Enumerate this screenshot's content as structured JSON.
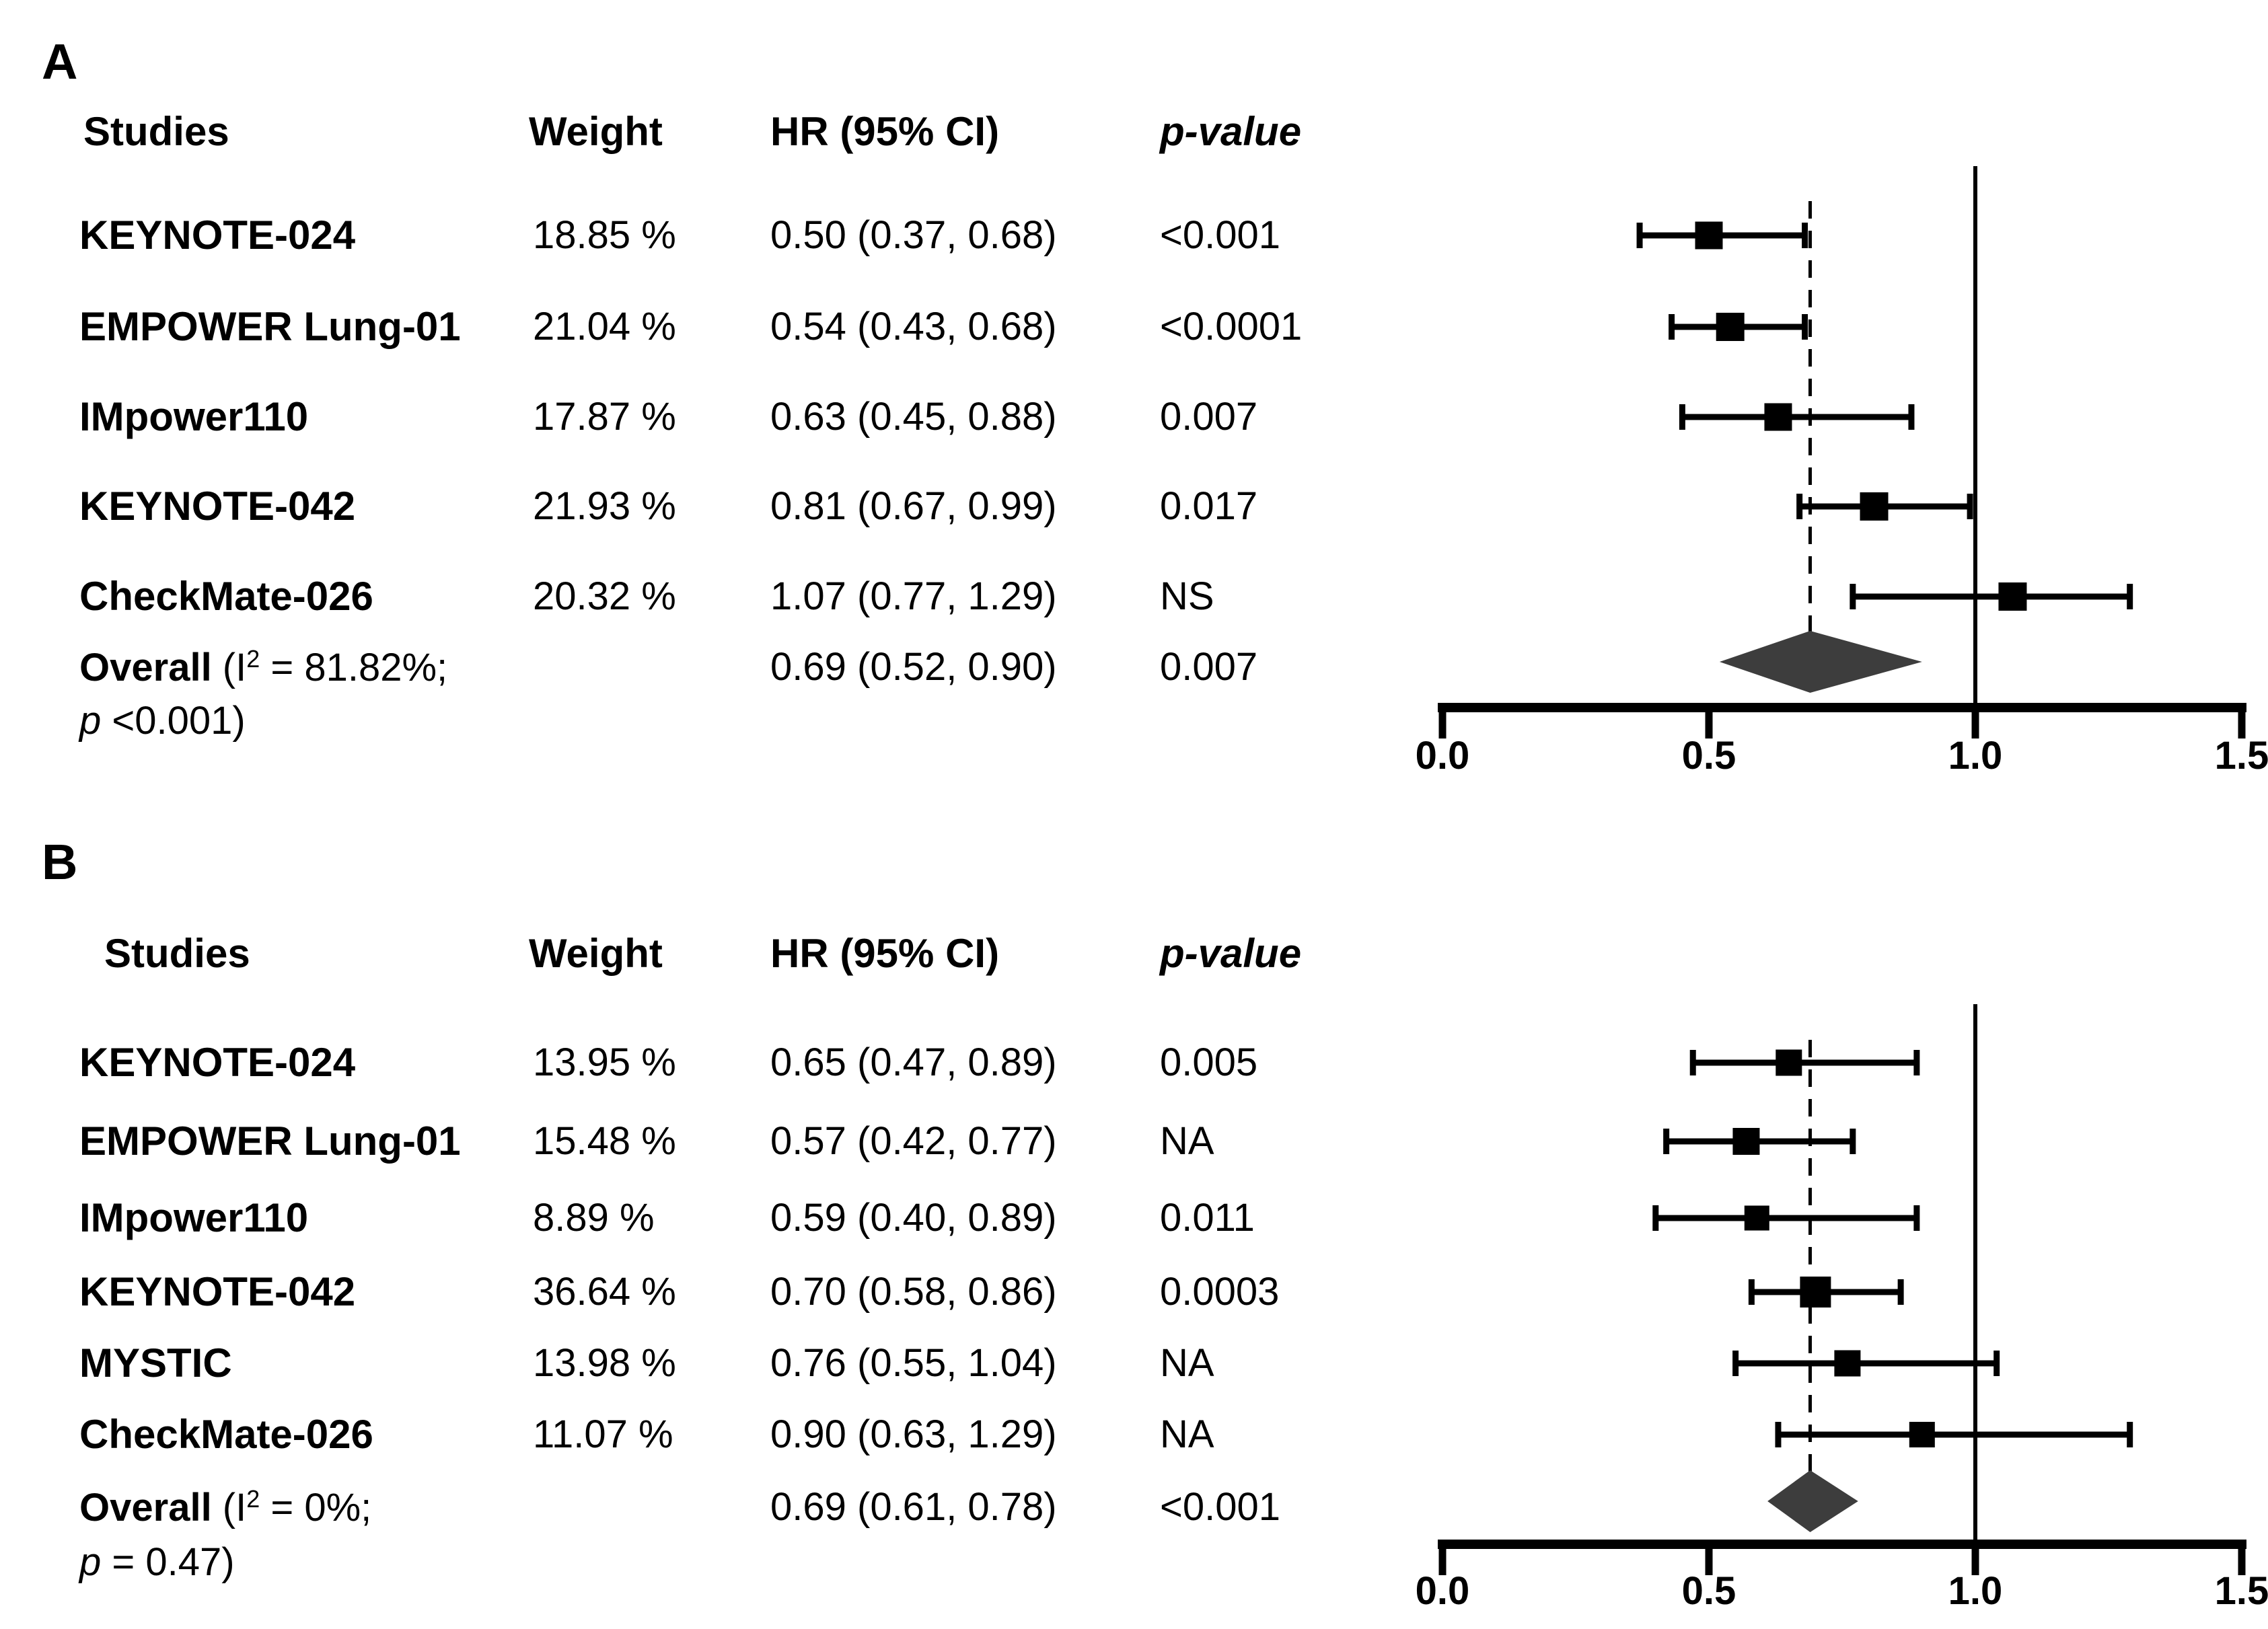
{
  "colors": {
    "background": "#ffffff",
    "text": "#000000",
    "marker": "#000000",
    "diamond": "#3d3d3d",
    "axis": "#000000"
  },
  "chart_data": [
    {
      "type": "scatter",
      "variant": "forest-plot",
      "panel_label": "A",
      "columns": {
        "studies": "Studies",
        "weight": "Weight",
        "hr": "HR (95% CI)",
        "p": "p-value"
      },
      "xlim": [
        0,
        1.5
      ],
      "xticks": [
        0,
        0.5,
        1.0,
        1.5
      ],
      "xtick_labels": [
        "0.0",
        "0.5",
        "1.0",
        "1.5"
      ],
      "reference_line_x": 1.0,
      "dashed_line_x": 0.69,
      "studies": [
        {
          "name": "KEYNOTE-024",
          "weight_pct": 18.85,
          "weight_label": "18.85 %",
          "hr": 0.5,
          "ci_low": 0.37,
          "ci_high": 0.68,
          "hr_label": "0.50 (0.37, 0.68)",
          "p_label": "<0.001"
        },
        {
          "name": "EMPOWER Lung-01",
          "weight_pct": 21.04,
          "weight_label": "21.04 %",
          "hr": 0.54,
          "ci_low": 0.43,
          "ci_high": 0.68,
          "hr_label": "0.54 (0.43, 0.68)",
          "p_label": "<0.0001"
        },
        {
          "name": "IMpower110",
          "weight_pct": 17.87,
          "weight_label": "17.87 %",
          "hr": 0.63,
          "ci_low": 0.45,
          "ci_high": 0.88,
          "hr_label": "0.63 (0.45, 0.88)",
          "p_label": "0.007"
        },
        {
          "name": "KEYNOTE-042",
          "weight_pct": 21.93,
          "weight_label": "21.93 %",
          "hr": 0.81,
          "ci_low": 0.67,
          "ci_high": 0.99,
          "hr_label": "0.81 (0.67, 0.99)",
          "p_label": "0.017"
        },
        {
          "name": "CheckMate-026",
          "weight_pct": 20.32,
          "weight_label": "20.32 %",
          "hr": 1.07,
          "ci_low": 0.77,
          "ci_high": 1.29,
          "hr_label": "1.07 (0.77, 1.29)",
          "p_label": "NS"
        }
      ],
      "overall": {
        "label_bold": "Overall",
        "label_open": " (I",
        "label_sup": "2",
        "label_close": " = 81.82%;",
        "p_line2_italic": "p",
        "p_line2_rest": " <0.001)",
        "hr": 0.69,
        "ci_low": 0.52,
        "ci_high": 0.9,
        "hr_label": "0.69 (0.52, 0.90)",
        "p_label": "0.007"
      }
    },
    {
      "type": "scatter",
      "variant": "forest-plot",
      "panel_label": "B",
      "columns": {
        "studies": "Studies",
        "weight": "Weight",
        "hr": "HR (95% CI)",
        "p": "p-value"
      },
      "xlim": [
        0,
        1.5
      ],
      "xticks": [
        0,
        0.5,
        1.0,
        1.5
      ],
      "xtick_labels": [
        "0.0",
        "0.5",
        "1.0",
        "1.5"
      ],
      "reference_line_x": 1.0,
      "dashed_line_x": 0.69,
      "studies": [
        {
          "name": "KEYNOTE-024",
          "weight_pct": 13.95,
          "weight_label": "13.95 %",
          "hr": 0.65,
          "ci_low": 0.47,
          "ci_high": 0.89,
          "hr_label": "0.65 (0.47, 0.89)",
          "p_label": "0.005"
        },
        {
          "name": "EMPOWER Lung-01",
          "weight_pct": 15.48,
          "weight_label": "15.48 %",
          "hr": 0.57,
          "ci_low": 0.42,
          "ci_high": 0.77,
          "hr_label": "0.57 (0.42, 0.77)",
          "p_label": "NA"
        },
        {
          "name": "IMpower110",
          "weight_pct": 8.89,
          "weight_label": "8.89 %",
          "hr": 0.59,
          "ci_low": 0.4,
          "ci_high": 0.89,
          "hr_label": "0.59 (0.40, 0.89)",
          "p_label": "0.011"
        },
        {
          "name": "KEYNOTE-042",
          "weight_pct": 36.64,
          "weight_label": "36.64 %",
          "hr": 0.7,
          "ci_low": 0.58,
          "ci_high": 0.86,
          "hr_label": "0.70 (0.58, 0.86)",
          "p_label": "0.0003"
        },
        {
          "name": "MYSTIC",
          "weight_pct": 13.98,
          "weight_label": "13.98 %",
          "hr": 0.76,
          "ci_low": 0.55,
          "ci_high": 1.04,
          "hr_label": "0.76 (0.55, 1.04)",
          "p_label": "NA"
        },
        {
          "name": "CheckMate-026",
          "weight_pct": 11.07,
          "weight_label": "11.07 %",
          "hr": 0.9,
          "ci_low": 0.63,
          "ci_high": 1.29,
          "hr_label": "0.90 (0.63, 1.29)",
          "p_label": "NA"
        }
      ],
      "overall": {
        "label_bold": "Overall",
        "label_open": " (I",
        "label_sup": "2",
        "label_close": " = 0%;",
        "p_line2_italic": "p",
        "p_line2_rest": " = 0.47)",
        "hr": 0.69,
        "ci_low": 0.61,
        "ci_high": 0.78,
        "hr_label": "0.69 (0.61, 0.78)",
        "p_label": "<0.001"
      }
    }
  ]
}
